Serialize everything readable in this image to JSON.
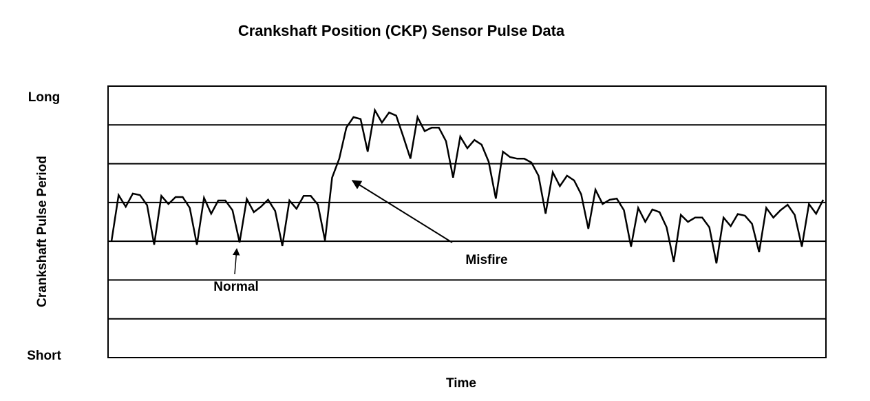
{
  "chart_data": {
    "type": "line",
    "title": "Crankshaft Position (CKP) Sensor Pulse Data",
    "x_label": "Time",
    "y_label": "Crankshaft Pulse Period",
    "annotations": [
      "Normal",
      "Misfire"
    ],
    "color": "#000000",
    "ylim": [
      0,
      7
    ],
    "yticks": [
      {
        "value": 0,
        "label": "Short"
      },
      {
        "value": 7,
        "label": "Long"
      }
    ],
    "y_gridlines": [
      1,
      2,
      3,
      4,
      5,
      6
    ],
    "grid": true,
    "values": [
      3.0,
      4.19,
      3.89,
      4.23,
      4.19,
      3.93,
      2.91,
      4.17,
      3.96,
      4.14,
      4.14,
      3.86,
      2.91,
      4.12,
      3.71,
      4.05,
      4.05,
      3.8,
      2.97,
      4.09,
      3.75,
      3.89,
      4.07,
      3.78,
      2.88,
      4.05,
      3.84,
      4.17,
      4.17,
      3.94,
      3.02,
      4.64,
      5.13,
      5.93,
      6.2,
      6.15,
      5.31,
      6.38,
      6.06,
      6.32,
      6.24,
      5.7,
      5.13,
      6.2,
      5.84,
      5.93,
      5.93,
      5.58,
      4.64,
      5.7,
      5.4,
      5.61,
      5.49,
      5.05,
      4.1,
      5.31,
      5.17,
      5.13,
      5.13,
      5.03,
      4.69,
      3.71,
      4.78,
      4.42,
      4.69,
      4.57,
      4.21,
      3.32,
      4.33,
      3.96,
      4.07,
      4.1,
      3.8,
      2.86,
      3.86,
      3.5,
      3.82,
      3.75,
      3.36,
      2.47,
      3.68,
      3.5,
      3.61,
      3.61,
      3.36,
      2.43,
      3.61,
      3.39,
      3.7,
      3.66,
      3.45,
      2.72,
      3.86,
      3.61,
      3.8,
      3.94,
      3.68,
      2.86,
      3.96,
      3.71,
      4.07
    ]
  }
}
